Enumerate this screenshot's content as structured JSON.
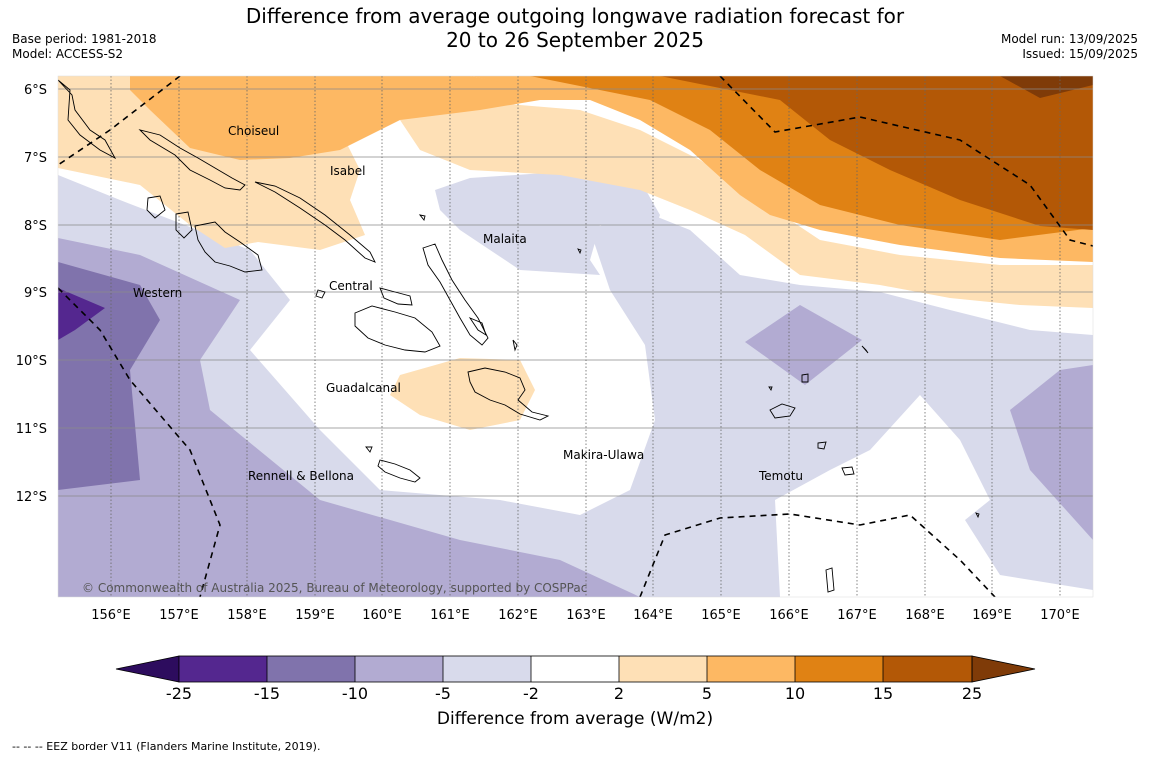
{
  "title": {
    "line1": "Difference from average outgoing longwave radiation forecast for",
    "line2": "20 to 26 September 2025"
  },
  "meta_left": {
    "base_period": "Base period: 1981-2018",
    "model": "Model: ACCESS-S2"
  },
  "meta_right": {
    "model_run": "Model run: 13/09/2025",
    "issued": "Issued: 15/09/2025"
  },
  "map": {
    "lat_labels": [
      "6°S",
      "7°S",
      "8°S",
      "9°S",
      "10°S",
      "11°S",
      "12°S"
    ],
    "lon_labels": [
      "156°E",
      "157°E",
      "158°E",
      "159°E",
      "160°E",
      "161°E",
      "162°E",
      "163°E",
      "164°E",
      "165°E",
      "166°E",
      "167°E",
      "168°E",
      "169°E",
      "170°E"
    ],
    "provinces": [
      "Choiseul",
      "Isabel",
      "Malaita",
      "Western",
      "Central",
      "Guadalcanal",
      "Makira-Ulawa",
      "Rennell & Bellona",
      "Temotu"
    ],
    "copyright": "© Commonwealth of Australia 2025, Bureau of Meteorology, supported by COSPPac"
  },
  "colorbar": {
    "colors": [
      "#2d0c5e",
      "#54278f",
      "#8073ac",
      "#b2abd2",
      "#d8daeb",
      "#ffffff",
      "#fee0b6",
      "#fdb863",
      "#e08214",
      "#b35806",
      "#7f3b08"
    ],
    "ticks": [
      "-25",
      "-15",
      "-10",
      "-5",
      "-2",
      "2",
      "5",
      "10",
      "15",
      "25"
    ],
    "label": "Difference from average (W/m2)"
  },
  "footnote": "--  --  -- EEZ border V11 (Flanders Marine Institute, 2019)."
}
